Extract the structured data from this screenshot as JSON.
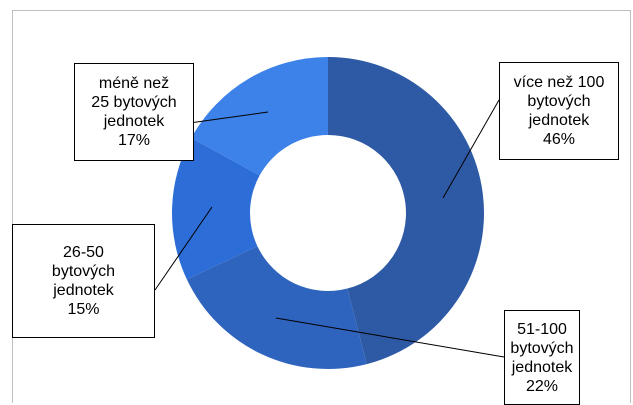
{
  "chart_data": {
    "type": "donut",
    "colors": [
      "#2e5aa5",
      "#2f64be",
      "#2d6dd7",
      "#3d82e8"
    ],
    "slices": [
      {
        "lines": [
          "více než 100",
          "bytových",
          "jednotek"
        ],
        "pct": "46%",
        "value": 46
      },
      {
        "lines": [
          "51-100",
          "bytových",
          "jednotek"
        ],
        "pct": "22%",
        "value": 22
      },
      {
        "lines": [
          "26-50",
          "bytových",
          "jednotek"
        ],
        "pct": "15%",
        "value": 15
      },
      {
        "lines": [
          "méně než",
          "25 bytových",
          "jednotek"
        ],
        "pct": "17%",
        "value": 17
      }
    ]
  }
}
